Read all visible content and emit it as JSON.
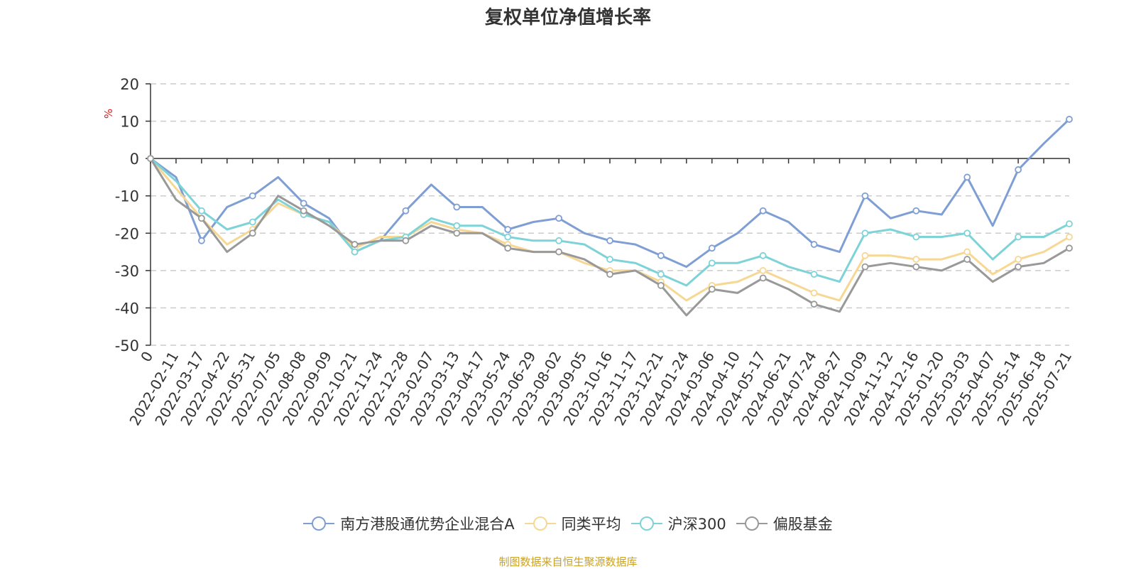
{
  "chart_data": {
    "type": "line",
    "title": "复权单位净值增长率",
    "ylabel": "%",
    "xlabel": "",
    "ylim": [
      -50,
      20
    ],
    "yticks": [
      20,
      10,
      0,
      -10,
      -20,
      -30,
      -40,
      -50
    ],
    "grid": true,
    "legend_position": "bottom",
    "categories": [
      "0",
      "2022-02-11",
      "2022-03-17",
      "2022-04-22",
      "2022-05-31",
      "2022-07-05",
      "2022-08-08",
      "2022-09-09",
      "2022-10-21",
      "2022-11-24",
      "2022-12-28",
      "2023-02-07",
      "2023-03-13",
      "2023-04-17",
      "2023-05-24",
      "2023-06-29",
      "2023-08-02",
      "2023-09-05",
      "2023-10-16",
      "2023-11-17",
      "2023-12-21",
      "2024-01-24",
      "2024-03-06",
      "2024-04-10",
      "2024-05-17",
      "2024-06-21",
      "2024-07-24",
      "2024-08-27",
      "2024-10-09",
      "2024-11-12",
      "2024-12-16",
      "2025-01-20",
      "2025-03-03",
      "2025-04-07",
      "2025-05-14",
      "2025-06-18",
      "2025-07-21"
    ],
    "series": [
      {
        "name": "南方港股通优势企业混合A",
        "color": "#7f9fd4",
        "values": [
          0,
          -5,
          -22,
          -13,
          -10,
          -5,
          -12,
          -16,
          -25,
          -22,
          -14,
          -7,
          -13,
          -13,
          -19,
          -17,
          -16,
          -20,
          -22,
          -23,
          -26,
          -29,
          -24,
          -20,
          -14,
          -17,
          -23,
          -25,
          -10,
          -16,
          -14,
          -15,
          -5,
          -18,
          -3,
          4,
          10.5
        ]
      },
      {
        "name": "同类平均",
        "color": "#f7d794",
        "values": [
          0,
          -8,
          -16,
          -23,
          -19,
          -12,
          -15,
          -17,
          -24,
          -21,
          -21,
          -17,
          -19,
          -20,
          -23,
          -25,
          -25,
          -28,
          -30,
          -30,
          -33,
          -38,
          -34,
          -33,
          -30,
          -33,
          -36,
          -38,
          -26,
          -26,
          -27,
          -27,
          -25,
          -31,
          -27,
          -25,
          -21
        ]
      },
      {
        "name": "沪深300",
        "color": "#7dd3d8",
        "values": [
          0,
          -6,
          -14,
          -19,
          -17,
          -11,
          -15,
          -17,
          -25,
          -22,
          -21,
          -16,
          -18,
          -18,
          -21,
          -22,
          -22,
          -23,
          -27,
          -28,
          -31,
          -34,
          -28,
          -28,
          -26,
          -29,
          -31,
          -33,
          -20,
          -19,
          -21,
          -21,
          -20,
          -27,
          -21,
          -21,
          -17.5
        ]
      },
      {
        "name": "偏股基金",
        "color": "#999999",
        "values": [
          0,
          -11,
          -16,
          -25,
          -20,
          -10,
          -14,
          -18,
          -23,
          -22,
          -22,
          -18,
          -20,
          -20,
          -24,
          -25,
          -25,
          -27,
          -31,
          -30,
          -34,
          -42,
          -35,
          -36,
          -32,
          -35,
          -39,
          -41,
          -29,
          -28,
          -29,
          -30,
          -27,
          -33,
          -29,
          -28,
          -24
        ]
      }
    ]
  },
  "source_note": "制图数据来自恒生聚源数据库"
}
